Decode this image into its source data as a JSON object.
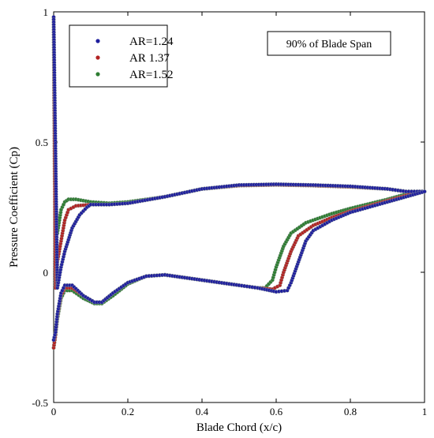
{
  "chart_data": {
    "type": "scatter",
    "title": "",
    "xlabel": "Blade Chord (x/c)",
    "ylabel": "Pressure Coefficient (Cp)",
    "xlim": [
      0,
      1
    ],
    "ylim": [
      -0.5,
      1
    ],
    "x_ticks": [
      "0",
      "0.2",
      "0.4",
      "0.6",
      "0.8",
      "1"
    ],
    "y_ticks": [
      "-0.5",
      "0",
      "0.5",
      "1"
    ],
    "grid": false,
    "legend_position": "top-left",
    "annotation": "90% of Blade Span",
    "series": [
      {
        "name": "AR=1.24",
        "color": "#1f1f9e",
        "suction": [
          [
            0.0,
            0.98
          ],
          [
            0.01,
            -0.06
          ],
          [
            0.02,
            0.02
          ],
          [
            0.03,
            0.08
          ],
          [
            0.05,
            0.17
          ],
          [
            0.07,
            0.22
          ],
          [
            0.09,
            0.25
          ],
          [
            0.1,
            0.26
          ],
          [
            0.15,
            0.26
          ],
          [
            0.2,
            0.265
          ],
          [
            0.3,
            0.29
          ],
          [
            0.4,
            0.32
          ],
          [
            0.5,
            0.335
          ],
          [
            0.6,
            0.338
          ],
          [
            0.7,
            0.335
          ],
          [
            0.8,
            0.33
          ],
          [
            0.9,
            0.32
          ],
          [
            0.95,
            0.31
          ],
          [
            0.98,
            0.31
          ],
          [
            1.0,
            0.31
          ]
        ],
        "pressure": [
          [
            0.0,
            -0.26
          ],
          [
            0.005,
            -0.23
          ],
          [
            0.01,
            -0.16
          ],
          [
            0.02,
            -0.08
          ],
          [
            0.03,
            -0.05
          ],
          [
            0.05,
            -0.05
          ],
          [
            0.08,
            -0.09
          ],
          [
            0.11,
            -0.115
          ],
          [
            0.13,
            -0.115
          ],
          [
            0.16,
            -0.08
          ],
          [
            0.2,
            -0.04
          ],
          [
            0.25,
            -0.015
          ],
          [
            0.3,
            -0.01
          ],
          [
            0.4,
            -0.03
          ],
          [
            0.5,
            -0.05
          ],
          [
            0.55,
            -0.06
          ],
          [
            0.6,
            -0.075
          ],
          [
            0.63,
            -0.07
          ],
          [
            0.64,
            -0.04
          ],
          [
            0.66,
            0.04
          ],
          [
            0.68,
            0.12
          ],
          [
            0.7,
            0.16
          ],
          [
            0.75,
            0.2
          ],
          [
            0.8,
            0.23
          ],
          [
            0.9,
            0.27
          ],
          [
            0.95,
            0.29
          ],
          [
            1.0,
            0.31
          ]
        ]
      },
      {
        "name": "AR 1.37",
        "color": "#b22222",
        "suction": [
          [
            0.0,
            0.98
          ],
          [
            0.005,
            -0.06
          ],
          [
            0.01,
            0.04
          ],
          [
            0.02,
            0.12
          ],
          [
            0.03,
            0.2
          ],
          [
            0.04,
            0.24
          ],
          [
            0.06,
            0.255
          ],
          [
            0.1,
            0.26
          ],
          [
            0.15,
            0.26
          ],
          [
            0.2,
            0.265
          ],
          [
            0.3,
            0.29
          ],
          [
            0.4,
            0.32
          ],
          [
            0.5,
            0.333
          ],
          [
            0.6,
            0.336
          ],
          [
            0.7,
            0.333
          ],
          [
            0.8,
            0.328
          ],
          [
            0.9,
            0.32
          ],
          [
            0.95,
            0.31
          ],
          [
            0.98,
            0.31
          ],
          [
            1.0,
            0.31
          ]
        ],
        "pressure": [
          [
            0.0,
            -0.29
          ],
          [
            0.005,
            -0.24
          ],
          [
            0.01,
            -0.17
          ],
          [
            0.02,
            -0.09
          ],
          [
            0.03,
            -0.06
          ],
          [
            0.05,
            -0.06
          ],
          [
            0.08,
            -0.09
          ],
          [
            0.11,
            -0.115
          ],
          [
            0.13,
            -0.115
          ],
          [
            0.16,
            -0.08
          ],
          [
            0.2,
            -0.04
          ],
          [
            0.25,
            -0.015
          ],
          [
            0.3,
            -0.01
          ],
          [
            0.4,
            -0.03
          ],
          [
            0.5,
            -0.05
          ],
          [
            0.55,
            -0.06
          ],
          [
            0.59,
            -0.065
          ],
          [
            0.61,
            -0.05
          ],
          [
            0.62,
            0.0
          ],
          [
            0.64,
            0.08
          ],
          [
            0.66,
            0.14
          ],
          [
            0.7,
            0.18
          ],
          [
            0.75,
            0.21
          ],
          [
            0.8,
            0.235
          ],
          [
            0.9,
            0.275
          ],
          [
            0.95,
            0.295
          ],
          [
            1.0,
            0.31
          ]
        ]
      },
      {
        "name": "AR=1.52",
        "color": "#2e7d32",
        "suction": [
          [
            0.0,
            0.97
          ],
          [
            0.003,
            0.35
          ],
          [
            0.01,
            0.15
          ],
          [
            0.02,
            0.24
          ],
          [
            0.03,
            0.27
          ],
          [
            0.04,
            0.28
          ],
          [
            0.06,
            0.28
          ],
          [
            0.1,
            0.27
          ],
          [
            0.15,
            0.265
          ],
          [
            0.2,
            0.27
          ],
          [
            0.3,
            0.29
          ],
          [
            0.4,
            0.32
          ],
          [
            0.5,
            0.333
          ],
          [
            0.6,
            0.336
          ],
          [
            0.7,
            0.333
          ],
          [
            0.8,
            0.328
          ],
          [
            0.9,
            0.32
          ],
          [
            0.95,
            0.31
          ],
          [
            0.98,
            0.31
          ],
          [
            1.0,
            0.31
          ]
        ],
        "pressure": [
          [
            0.0,
            -0.29
          ],
          [
            0.005,
            -0.24
          ],
          [
            0.01,
            -0.18
          ],
          [
            0.02,
            -0.1
          ],
          [
            0.03,
            -0.07
          ],
          [
            0.05,
            -0.07
          ],
          [
            0.08,
            -0.1
          ],
          [
            0.11,
            -0.12
          ],
          [
            0.13,
            -0.12
          ],
          [
            0.16,
            -0.09
          ],
          [
            0.2,
            -0.045
          ],
          [
            0.25,
            -0.015
          ],
          [
            0.3,
            -0.01
          ],
          [
            0.4,
            -0.03
          ],
          [
            0.5,
            -0.05
          ],
          [
            0.55,
            -0.06
          ],
          [
            0.57,
            -0.06
          ],
          [
            0.59,
            -0.03
          ],
          [
            0.6,
            0.02
          ],
          [
            0.62,
            0.1
          ],
          [
            0.64,
            0.15
          ],
          [
            0.68,
            0.19
          ],
          [
            0.75,
            0.225
          ],
          [
            0.8,
            0.245
          ],
          [
            0.9,
            0.28
          ],
          [
            0.95,
            0.3
          ],
          [
            1.0,
            0.31
          ]
        ]
      }
    ]
  }
}
